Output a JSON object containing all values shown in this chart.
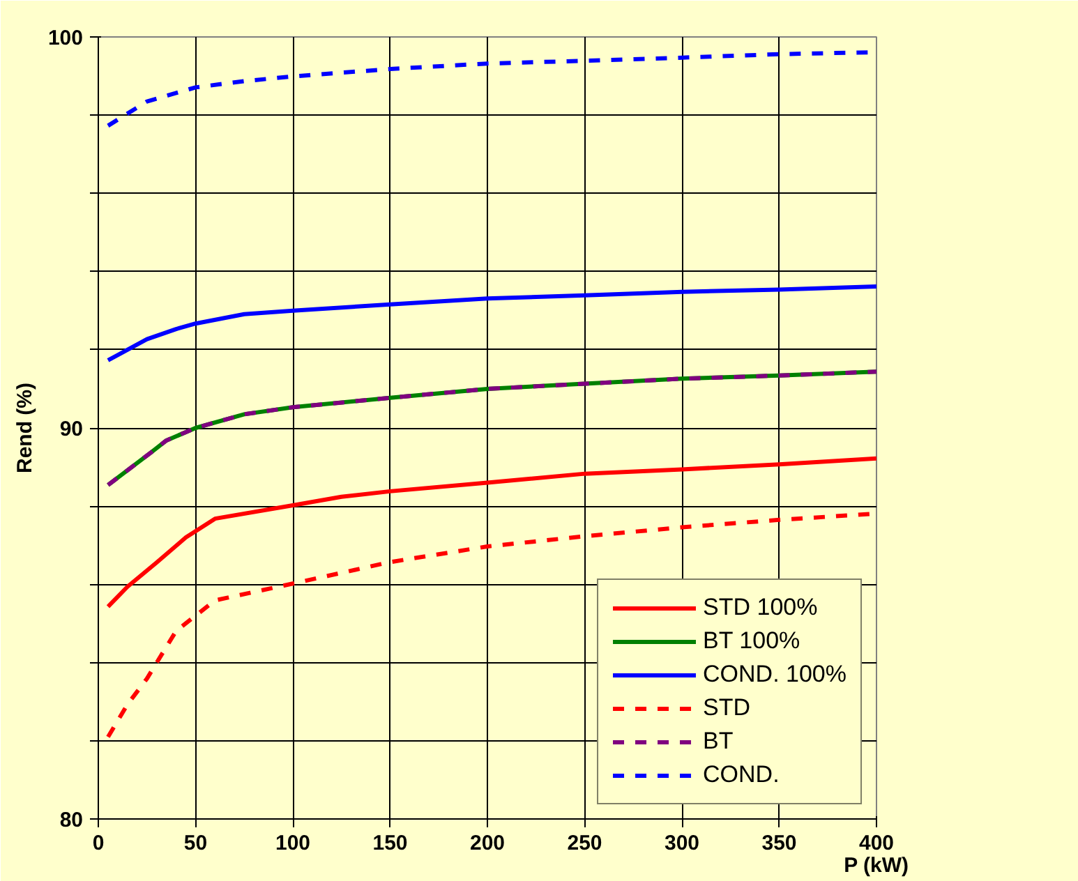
{
  "chart_data": {
    "type": "line",
    "xlabel": "P (kW)",
    "ylabel": "Rend (%)",
    "xlim": [
      0,
      400
    ],
    "xticks": [
      0,
      50,
      100,
      150,
      200,
      250,
      300,
      350,
      400
    ],
    "ylim": [
      80,
      100
    ],
    "yticks": [
      80,
      {
        "value": 82,
        "label": null
      },
      {
        "value": 84,
        "label": null
      },
      {
        "value": 86,
        "label": null
      },
      {
        "value": 88,
        "label": null
      },
      90,
      {
        "value": 92,
        "label": null
      },
      {
        "value": 94,
        "label": null
      },
      {
        "value": 96,
        "label": null
      },
      {
        "value": 98,
        "label": null
      },
      100
    ],
    "grid": true,
    "legend": "bottom right",
    "series": [
      {
        "name": "STD 100%",
        "color": "#ff0000",
        "line_style": "solid",
        "x": [
          5,
          15,
          30,
          45,
          60,
          100,
          125,
          150,
          200,
          250,
          300,
          350,
          400
        ],
        "values": [
          85.43,
          85.94,
          86.56,
          87.2,
          87.68,
          88.02,
          88.24,
          88.38,
          88.6,
          88.83,
          88.94,
          89.07,
          89.22
        ]
      },
      {
        "name": "BT 100%",
        "color": "#008000",
        "line_style": "solid",
        "x": [
          5,
          27,
          35,
          50,
          75,
          100,
          150,
          200,
          250,
          300,
          350,
          400
        ],
        "values": [
          88.54,
          89.37,
          89.68,
          90.0,
          90.35,
          90.53,
          90.77,
          91.0,
          91.13,
          91.26,
          91.34,
          91.44
        ]
      },
      {
        "name": "COND. 100%",
        "color": "#0000ff",
        "line_style": "solid",
        "x": [
          5,
          25,
          40,
          50,
          75,
          100,
          150,
          200,
          250,
          300,
          350,
          400
        ],
        "values": [
          91.73,
          92.27,
          92.53,
          92.67,
          92.91,
          93.0,
          93.16,
          93.31,
          93.39,
          93.48,
          93.54,
          93.62
        ]
      },
      {
        "name": "STD",
        "color": "#ff0000",
        "line_style": "dashed",
        "x": [
          5,
          15,
          25,
          40,
          60,
          100,
          150,
          200,
          250,
          300,
          350,
          400
        ],
        "values": [
          82.1,
          82.93,
          83.59,
          84.81,
          85.59,
          86.02,
          86.57,
          86.97,
          87.23,
          87.46,
          87.65,
          87.81
        ]
      },
      {
        "name": "BT",
        "color": "#800080",
        "line_style": "dashed",
        "x": [
          5,
          27,
          35,
          50,
          75,
          100,
          150,
          200,
          250,
          300,
          350,
          400
        ],
        "values": [
          88.54,
          89.37,
          89.68,
          90.0,
          90.35,
          90.53,
          90.77,
          91.0,
          91.13,
          91.26,
          91.34,
          91.44
        ]
      },
      {
        "name": "COND.",
        "color": "#0000ff",
        "line_style": "dashed",
        "x": [
          5,
          25,
          50,
          75,
          100,
          150,
          200,
          250,
          300,
          350,
          400
        ],
        "values": [
          97.73,
          98.35,
          98.71,
          98.87,
          98.99,
          99.18,
          99.32,
          99.39,
          99.47,
          99.56,
          99.61
        ]
      }
    ]
  }
}
